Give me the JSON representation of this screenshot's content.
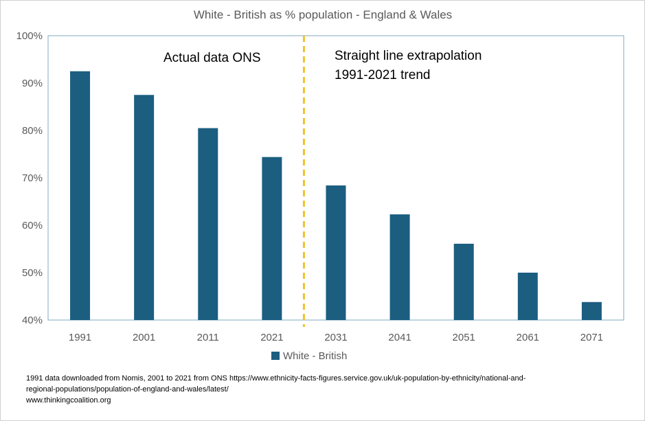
{
  "chart_data": {
    "type": "bar",
    "title": "White - British as % population - England  & Wales",
    "categories": [
      "1991",
      "2001",
      "2011",
      "2021",
      "2031",
      "2041",
      "2051",
      "2061",
      "2071"
    ],
    "series": [
      {
        "name": "White - British",
        "values": [
          92.5,
          87.5,
          80.5,
          74.4,
          68.4,
          62.3,
          56.1,
          50.0,
          43.8
        ]
      }
    ],
    "ylim": [
      40,
      100
    ],
    "yticks": [
      "40%",
      "50%",
      "60%",
      "70%",
      "80%",
      "90%",
      "100%"
    ],
    "ytick_values": [
      40,
      50,
      60,
      70,
      80,
      90,
      100
    ],
    "legend_position": "bottom",
    "divider_after_category": "2021",
    "annotations": {
      "left": "Actual data ONS",
      "right_line1": "Straight line extrapolation",
      "right_line2": "1991-2021 trend"
    },
    "colors": {
      "bar": "#1B5E80",
      "divider": "#F2C12E",
      "axis": "#7FA9BF",
      "text": "#595959"
    }
  },
  "source_note": {
    "line1": "1991 data downloaded  from Nomis, 2001 to 2021 from ONS  https://www.ethnicity-facts-figures.service.gov.uk/uk-population-by-ethnicity/national-and-",
    "line2": "regional-populations/population-of-england-and-wales/latest/",
    "line3": "www.thinkingcoalition.org"
  }
}
